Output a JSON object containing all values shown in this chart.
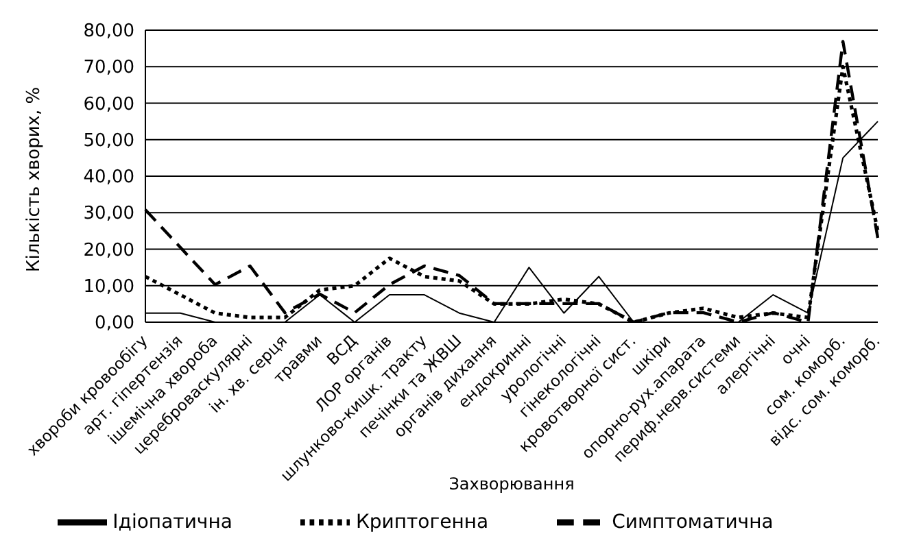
{
  "chart_data": {
    "type": "line",
    "xlabel": "Захворювання",
    "ylabel": "Кількість хворих, %",
    "categories": [
      "хвороби кровообігу",
      "арт. гіпертензія",
      "ішемічна хвороба",
      "цереброваскулярні",
      "ін. хв. серця",
      "травми",
      "ВСД",
      "ЛОР органів",
      "шлунково-кишк. тракту",
      "печінки та ЖВШ",
      "органів дихання",
      "ендокринні",
      "урологічні",
      "гінекологічні",
      "кровотворної сист.",
      "шкіри",
      "опорно-рух.апарата",
      "периф.нерв.системи",
      "алергічні",
      "очні",
      "сом. коморб.",
      "відс. сом. коморб."
    ],
    "series": [
      {
        "name": "Ідіопатична",
        "color": "#000000",
        "line_style": "solid",
        "values": [
          2.5,
          2.5,
          0,
          0,
          0,
          7.5,
          0,
          7.5,
          7.5,
          2.5,
          0,
          15,
          2.5,
          12.5,
          0,
          0,
          0,
          0,
          7.5,
          2.5,
          45,
          55
        ]
      },
      {
        "name": "Криптогенна",
        "color": "#000000",
        "line_style": "dotted",
        "values": [
          12.5,
          7.5,
          2.5,
          1.3,
          1.3,
          8.8,
          10,
          17.5,
          12.5,
          11.3,
          5,
          5,
          6.3,
          5,
          0,
          2.5,
          3.8,
          1.3,
          2.5,
          1.3,
          70,
          25
        ]
      },
      {
        "name": "Симптоматична",
        "color": "#000000",
        "line_style": "dashed",
        "values": [
          30.8,
          20.5,
          10.3,
          15.4,
          2.6,
          7.7,
          2.6,
          10.3,
          15.4,
          12.8,
          5.1,
          5.1,
          5.1,
          5.1,
          0,
          2.6,
          2.6,
          0,
          2.6,
          0,
          76.9,
          23.1
        ]
      }
    ],
    "ylim": [
      0,
      80
    ],
    "yticks": [
      {
        "value": 0,
        "label": "0,00"
      },
      {
        "value": 10,
        "label": "10,00"
      },
      {
        "value": 20,
        "label": "20,00"
      },
      {
        "value": 30,
        "label": "30,00"
      },
      {
        "value": 40,
        "label": "40,00"
      },
      {
        "value": 50,
        "label": "50,00"
      },
      {
        "value": 60,
        "label": "60,00"
      },
      {
        "value": 70,
        "label": "70,00"
      },
      {
        "value": 80,
        "label": "80,00"
      }
    ],
    "grid": "y",
    "legend": "bottom",
    "marker": "none"
  }
}
